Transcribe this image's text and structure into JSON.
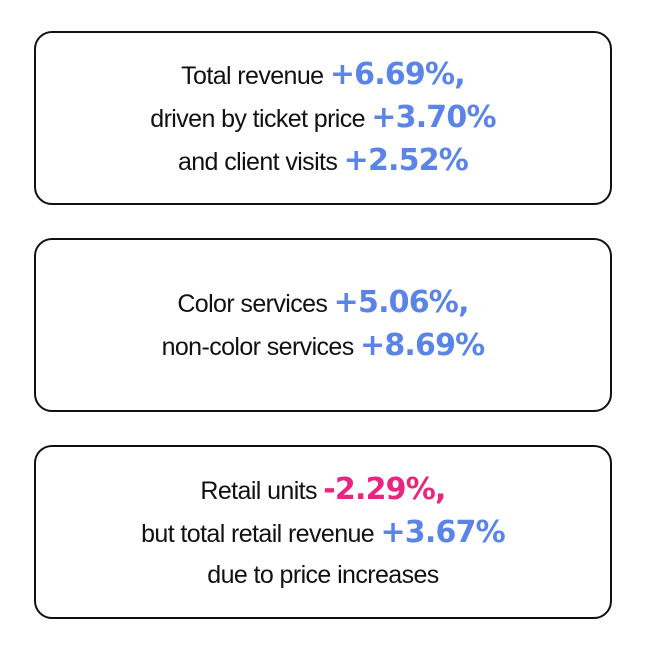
{
  "colors": {
    "positive": "#5b84e8",
    "negative": "#e8267f",
    "text": "#111111",
    "border": "#111111"
  },
  "cards": [
    {
      "lines": [
        {
          "text": "Total revenue ",
          "value": "+6.69%,",
          "tone": "positive"
        },
        {
          "text": "driven by ticket price ",
          "value": "+3.70%",
          "tone": "positive"
        },
        {
          "text": "and client visits ",
          "value": "+2.52%",
          "tone": "positive"
        }
      ]
    },
    {
      "lines": [
        {
          "text": "Color services ",
          "value": "+5.06%,",
          "tone": "positive"
        },
        {
          "text": "non-color services ",
          "value": "+8.69%",
          "tone": "positive"
        }
      ]
    },
    {
      "lines": [
        {
          "text": "Retail units ",
          "value": "-2.29%,",
          "tone": "negative"
        },
        {
          "text": "but total retail revenue ",
          "value": "+3.67%",
          "tone": "positive"
        },
        {
          "text": "due to price increases",
          "value": "",
          "tone": "none"
        }
      ]
    }
  ]
}
